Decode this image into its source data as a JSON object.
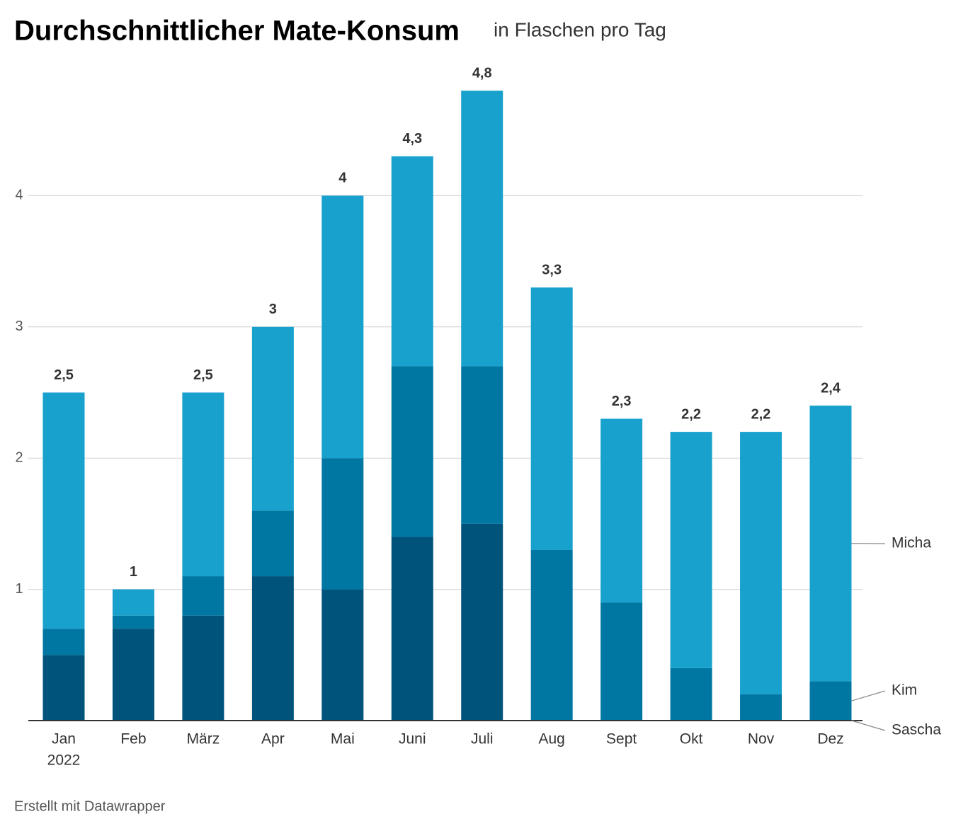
{
  "chart_data": {
    "type": "stacked_bar",
    "title": "Durchschnittlicher Mate-Konsum",
    "subtitle": "in Flaschen pro Tag",
    "categories": [
      "Jan",
      "Feb",
      "März",
      "Apr",
      "Mai",
      "Juni",
      "Juli",
      "Aug",
      "Sept",
      "Okt",
      "Nov",
      "Dez"
    ],
    "year_label": "2022",
    "series": [
      {
        "name": "Sascha",
        "color": "#00537a",
        "values": [
          0.5,
          0.7,
          0.8,
          1.1,
          1.0,
          1.4,
          1.5,
          0,
          0,
          0,
          0,
          0
        ]
      },
      {
        "name": "Kim",
        "color": "#0077a3",
        "values": [
          0.2,
          0.1,
          0.3,
          0.5,
          1.0,
          1.3,
          1.2,
          1.3,
          0.9,
          0.4,
          0.2,
          0.3
        ]
      },
      {
        "name": "Micha",
        "color": "#18a1cd",
        "values": [
          1.8,
          0.2,
          1.4,
          1.4,
          2.0,
          1.6,
          2.1,
          2.0,
          1.4,
          1.8,
          2.0,
          2.1
        ]
      }
    ],
    "totals": [
      2.5,
      1,
      2.5,
      3,
      4,
      4.3,
      4.8,
      3.3,
      2.3,
      2.2,
      2.2,
      2.4
    ],
    "total_labels": [
      "2,5",
      "1",
      "2,5",
      "3",
      "4",
      "4,3",
      "4,8",
      "3,3",
      "2,3",
      "2,2",
      "2,2",
      "2,4"
    ],
    "ylim": [
      0,
      5
    ],
    "yticks": [
      1,
      2,
      3,
      4
    ],
    "grid": true,
    "footer": "Erstellt mit Datawrapper"
  }
}
